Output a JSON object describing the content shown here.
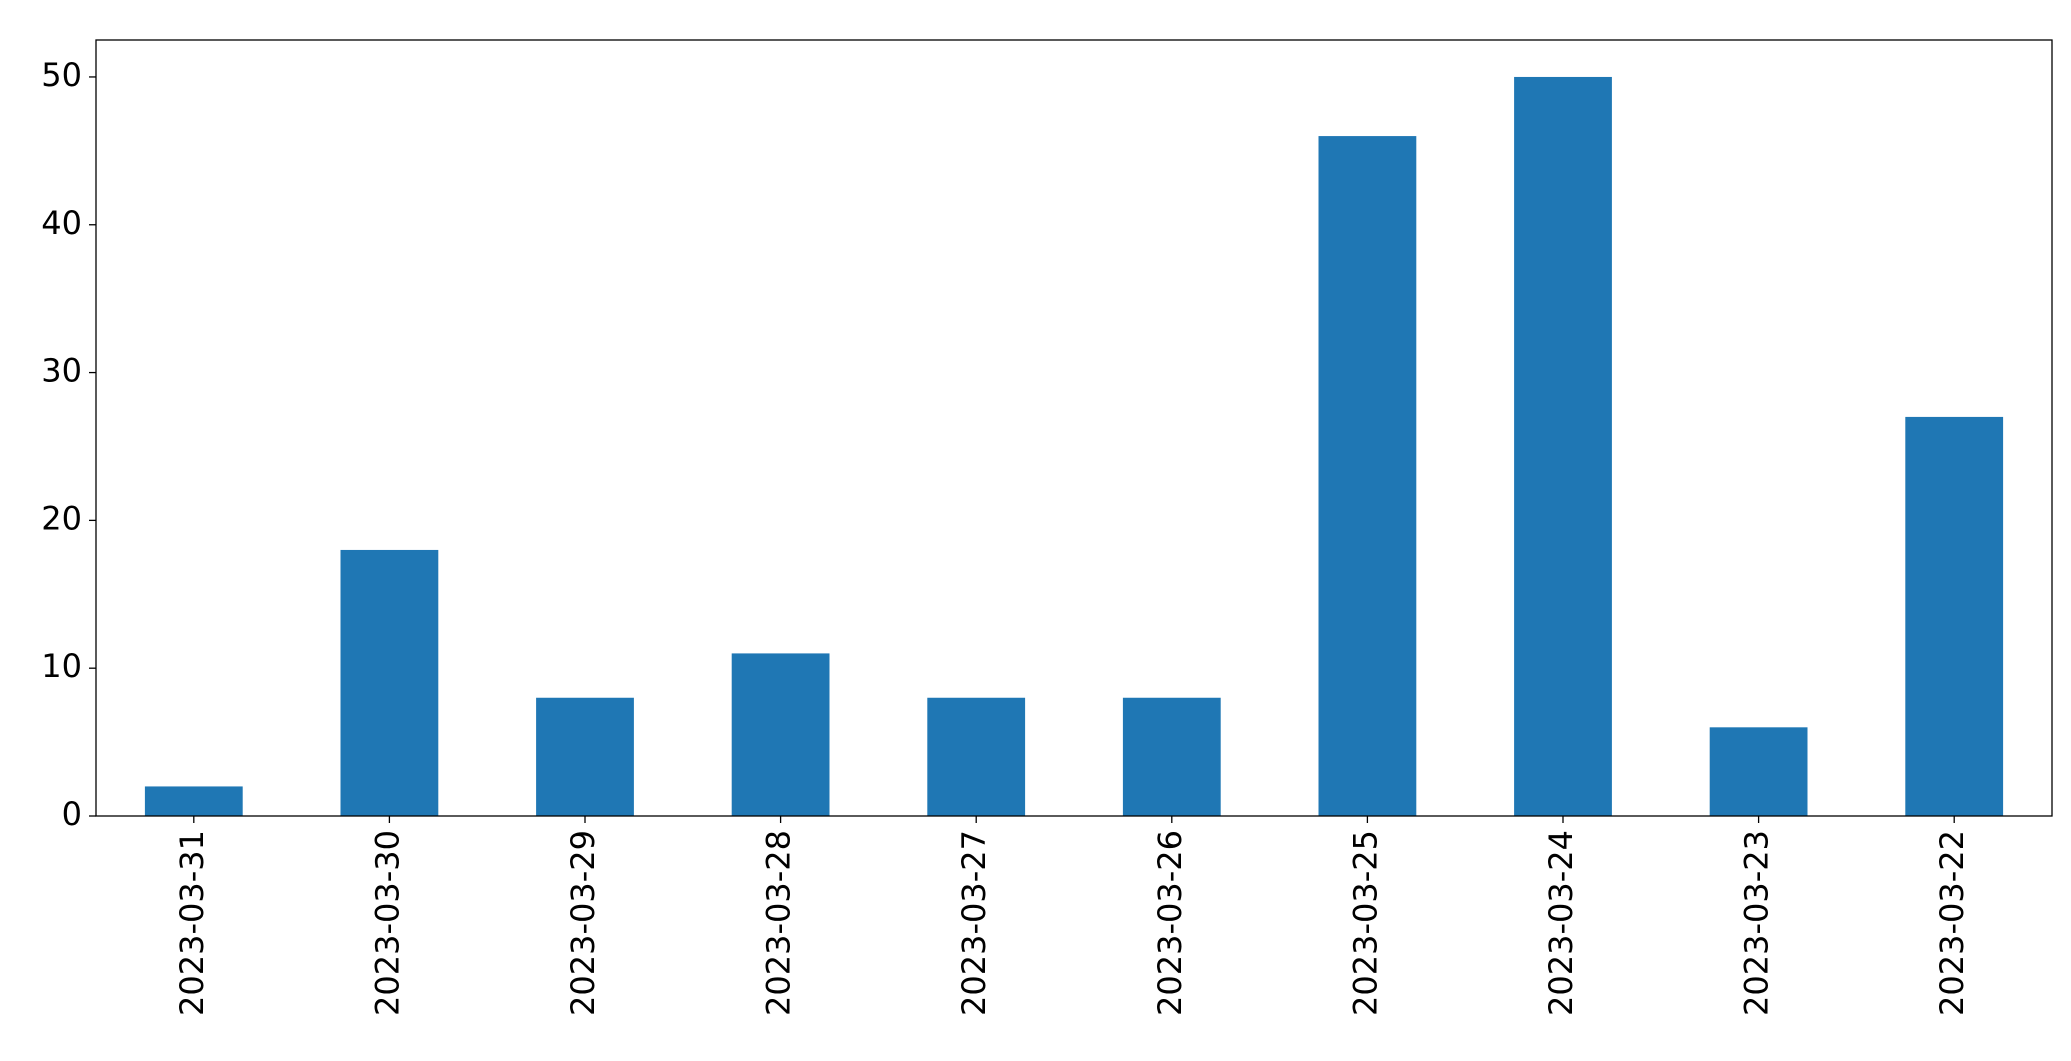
{
  "chart_data": {
    "type": "bar",
    "categories": [
      "2023-03-31",
      "2023-03-30",
      "2023-03-29",
      "2023-03-28",
      "2023-03-27",
      "2023-03-26",
      "2023-03-25",
      "2023-03-24",
      "2023-03-23",
      "2023-03-22"
    ],
    "values": [
      2,
      18,
      8,
      11,
      8,
      8,
      46,
      50,
      6,
      27
    ],
    "color": "#1f77b4",
    "ylim": [
      0,
      52.5
    ],
    "yticks": [
      0,
      10,
      20,
      30,
      40,
      50
    ],
    "grid": false
  }
}
